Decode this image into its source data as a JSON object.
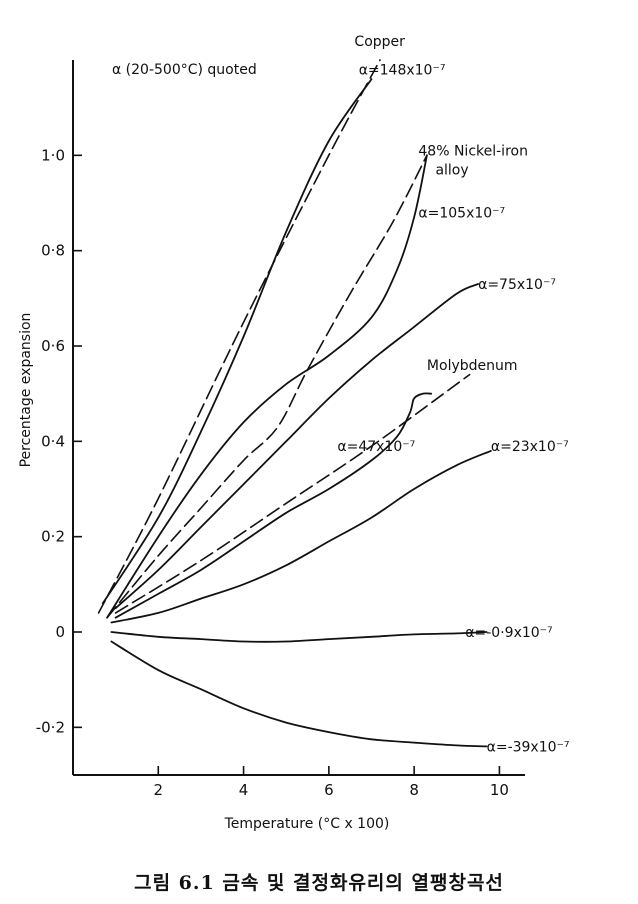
{
  "caption": "그림 6.1 금속 및 결정화유리의 열팽창곡선",
  "chart_data": {
    "type": "line",
    "xlabel": "Temperature (°C x 100)",
    "ylabel": "Percentage expansion",
    "xlim": [
      0,
      10.6
    ],
    "ylim": [
      -0.3,
      1.2
    ],
    "xticks": [
      2,
      4,
      6,
      8,
      10
    ],
    "xticklabels": [
      "2",
      "4",
      "6",
      "8",
      "10"
    ],
    "yticks": [
      1.0,
      0.8,
      0.6,
      0.4,
      0.2,
      0,
      -0.2
    ],
    "yticklabels": [
      "1·0",
      "0·8",
      "0·6",
      "0·4",
      "0·2",
      "0",
      "-0·2"
    ],
    "grid": false,
    "note": "α (20-500°C) quoted",
    "series": [
      {
        "label": "α=148x10⁻⁷",
        "style": "solid",
        "label_x": 6.7,
        "label_y": 1.18,
        "x": [
          0.7,
          2,
          3,
          4,
          5,
          6,
          7
        ],
        "y": [
          0.06,
          0.24,
          0.42,
          0.62,
          0.84,
          1.03,
          1.16
        ]
      },
      {
        "label": "Copper",
        "style": "dashed",
        "label_x": 6.6,
        "label_y": 1.24,
        "x": [
          0.6,
          2,
          4,
          6,
          7.2
        ],
        "y": [
          0.04,
          0.28,
          0.65,
          1.0,
          1.2
        ]
      },
      {
        "label": "α=105x10⁻⁷",
        "style": "solid",
        "label_x": 8.1,
        "label_y": 0.88,
        "x": [
          0.8,
          2,
          3,
          4,
          5,
          6,
          7,
          7.6,
          8,
          8.3
        ],
        "y": [
          0.03,
          0.2,
          0.33,
          0.44,
          0.52,
          0.58,
          0.66,
          0.76,
          0.87,
          1.0
        ]
      },
      {
        "label": "48% Nickel-iron alloy",
        "style": "dashed",
        "label_x": 8.1,
        "label_y": 1.0,
        "x": [
          0.8,
          2,
          3,
          4,
          4.8,
          5.5,
          6.5,
          7.5,
          8.3
        ],
        "y": [
          0.03,
          0.16,
          0.26,
          0.36,
          0.43,
          0.55,
          0.71,
          0.86,
          1.0
        ]
      },
      {
        "label": "α=75x10⁻⁷",
        "style": "solid",
        "label_x": 9.5,
        "label_y": 0.73,
        "x": [
          1,
          2,
          3,
          4,
          5,
          6,
          7,
          8,
          9,
          9.5
        ],
        "y": [
          0.05,
          0.13,
          0.22,
          0.31,
          0.4,
          0.49,
          0.57,
          0.64,
          0.71,
          0.73
        ]
      },
      {
        "label": "α=47x10⁻⁷",
        "style": "solid",
        "label_x": 6.2,
        "label_y": 0.39,
        "x": [
          1,
          2,
          3,
          4,
          5,
          6,
          7,
          7.6,
          7.9,
          8,
          8.2,
          8.4
        ],
        "y": [
          0.03,
          0.08,
          0.13,
          0.19,
          0.25,
          0.3,
          0.36,
          0.41,
          0.46,
          0.49,
          0.5,
          0.5
        ]
      },
      {
        "label": "Molybdenum",
        "style": "dashed",
        "label_x": 8.3,
        "label_y": 0.56,
        "x": [
          1,
          3,
          5,
          7,
          9.3
        ],
        "y": [
          0.04,
          0.15,
          0.27,
          0.39,
          0.54
        ]
      },
      {
        "label": "α=23x10⁻⁷",
        "style": "solid",
        "label_x": 9.8,
        "label_y": 0.39,
        "x": [
          0.9,
          2,
          3,
          4,
          5,
          6,
          7,
          8,
          9,
          9.8
        ],
        "y": [
          0.02,
          0.04,
          0.07,
          0.1,
          0.14,
          0.19,
          0.24,
          0.3,
          0.35,
          0.38
        ]
      },
      {
        "label": "α=-0·9x10⁻⁷",
        "style": "solid",
        "label_x": 9.2,
        "label_y": 0.0,
        "x": [
          0.9,
          2,
          3,
          4,
          5,
          6,
          7,
          8,
          9,
          9.7
        ],
        "y": [
          0.0,
          -0.01,
          -0.015,
          -0.02,
          -0.02,
          -0.015,
          -0.01,
          -0.005,
          -0.003,
          0.0
        ]
      },
      {
        "label": "α=-39x10⁻⁷",
        "style": "solid",
        "label_x": 9.7,
        "label_y": -0.24,
        "x": [
          0.9,
          2,
          3,
          4,
          5,
          6,
          7,
          8,
          9,
          9.7
        ],
        "y": [
          -0.02,
          -0.08,
          -0.12,
          -0.16,
          -0.19,
          -0.21,
          -0.225,
          -0.232,
          -0.238,
          -0.24
        ]
      }
    ],
    "annotations": [
      {
        "text": "Copper",
        "x": 6.6,
        "y": 1.24
      },
      {
        "text": "α=148x10⁻⁷",
        "x": 6.7,
        "y": 1.18
      },
      {
        "text": "48% Nickel-iron",
        "x": 8.1,
        "y": 1.01
      },
      {
        "text": "alloy",
        "x": 8.5,
        "y": 0.97
      },
      {
        "text": "α=105x10⁻⁷",
        "x": 8.1,
        "y": 0.88
      },
      {
        "text": "α=75x10⁻⁷",
        "x": 9.5,
        "y": 0.73
      },
      {
        "text": "Molybdenum",
        "x": 8.3,
        "y": 0.56
      },
      {
        "text": "α=47x10⁻⁷",
        "x": 6.2,
        "y": 0.39
      },
      {
        "text": "α=23x10⁻⁷",
        "x": 9.8,
        "y": 0.39
      },
      {
        "text": "α=-0·9x10⁻⁷",
        "x": 9.2,
        "y": 0.0
      },
      {
        "text": "α=-39x10⁻⁷",
        "x": 9.7,
        "y": -0.24
      }
    ]
  }
}
